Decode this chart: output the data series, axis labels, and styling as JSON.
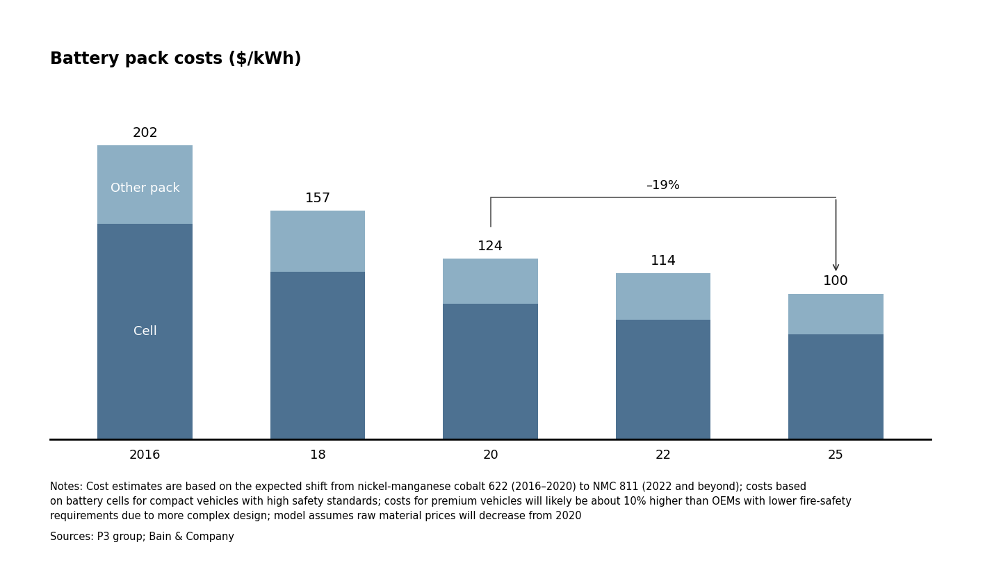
{
  "title": "Battery pack costs ($/kWh)",
  "categories": [
    "2016",
    "18",
    "20",
    "22",
    "25"
  ],
  "cell_values": [
    148,
    115,
    93,
    82,
    72
  ],
  "other_pack_values": [
    54,
    42,
    31,
    32,
    28
  ],
  "total_values": [
    202,
    157,
    124,
    114,
    100
  ],
  "cell_color": "#4d7191",
  "other_pack_color": "#8dafc4",
  "cell_label": "Cell",
  "other_pack_label": "Other pack",
  "bar_width": 0.55,
  "ylim": [
    0,
    240
  ],
  "annotation_text": "–19%",
  "annotation_from_bar": 2,
  "annotation_to_bar": 4,
  "notes_text": "Notes: Cost estimates are based on the expected shift from nickel-manganese cobalt 622 (2016–2020) to NMC 811 (2022 and beyond); costs based\non battery cells for compact vehicles with high safety standards; costs for premium vehicles will likely be about 10% higher than OEMs with lower fire-safety\nrequirements due to more complex design; model assumes raw material prices will decrease from 2020",
  "sources_text": "Sources: P3 group; Bain & Company",
  "background_color": "#ffffff",
  "title_fontsize": 17,
  "label_fontsize": 13,
  "tick_fontsize": 13,
  "note_fontsize": 10.5,
  "value_fontsize": 14
}
